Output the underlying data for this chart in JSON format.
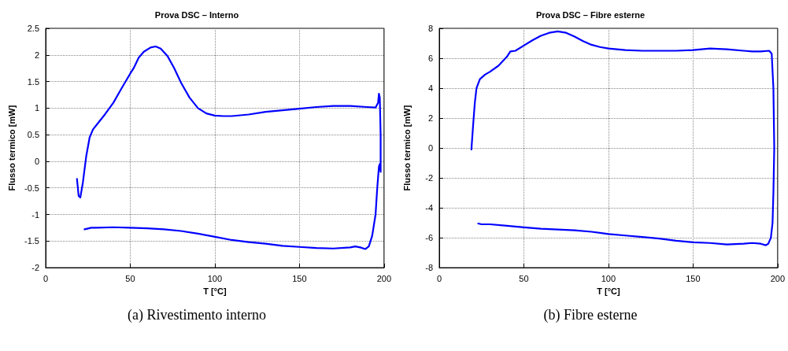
{
  "chart_data": [
    {
      "type": "line",
      "title": "Prova DSC – Interno",
      "xlabel": "T [°C]",
      "ylabel": "Flusso termico [mW]",
      "annotations": [
        "(a) Rivestimento interno"
      ],
      "xlim": [
        0,
        200
      ],
      "xticks": [
        0,
        50,
        100,
        150,
        200
      ],
      "ylim": [
        -2,
        2.5
      ],
      "yticks": [
        -2,
        -1.5,
        -1,
        -0.5,
        0,
        0.5,
        1,
        1.5,
        2,
        2.5
      ],
      "grid": true,
      "marker": "none",
      "line_style": "solid",
      "series": [
        {
          "color": "#0000ff",
          "x": [
            18.5,
            19.5,
            20.5,
            22,
            24,
            26,
            28,
            31,
            35,
            40,
            45,
            50,
            52,
            55,
            58,
            62,
            65,
            68,
            72,
            76,
            80,
            85,
            90,
            95,
            100,
            105,
            110,
            120,
            130,
            140,
            150,
            160,
            170,
            180,
            190,
            195,
            196.5,
            197,
            197.5,
            198,
            198,
            197.5,
            197,
            196,
            195,
            193,
            191,
            189,
            186,
            183,
            180,
            170,
            160,
            150,
            140,
            130,
            120,
            110,
            100,
            90,
            80,
            70,
            60,
            50,
            40,
            30,
            27,
            23
          ],
          "values": [
            -0.33,
            -0.65,
            -0.68,
            -0.4,
            0.1,
            0.45,
            0.6,
            0.72,
            0.88,
            1.1,
            1.38,
            1.65,
            1.75,
            1.95,
            2.06,
            2.14,
            2.16,
            2.12,
            1.98,
            1.75,
            1.48,
            1.2,
            1.0,
            0.9,
            0.86,
            0.85,
            0.85,
            0.88,
            0.93,
            0.96,
            0.99,
            1.02,
            1.04,
            1.04,
            1.02,
            1.01,
            1.1,
            1.27,
            1.2,
            0.5,
            -0.2,
            -0.05,
            -0.1,
            -0.5,
            -1.0,
            -1.4,
            -1.6,
            -1.65,
            -1.62,
            -1.6,
            -1.62,
            -1.64,
            -1.63,
            -1.61,
            -1.59,
            -1.55,
            -1.52,
            -1.48,
            -1.42,
            -1.36,
            -1.31,
            -1.28,
            -1.26,
            -1.25,
            -1.24,
            -1.25,
            -1.25,
            -1.28
          ]
        }
      ]
    },
    {
      "type": "line",
      "title": "Prova DSC – Fibre esterne",
      "xlabel": "T [°C]",
      "ylabel": "Flusso termico [mW]",
      "annotations": [
        "(b) Fibre esterne"
      ],
      "xlim": [
        0,
        200
      ],
      "xticks": [
        0,
        50,
        100,
        150,
        200
      ],
      "ylim": [
        -8,
        8
      ],
      "yticks": [
        -8,
        -6,
        -4,
        -2,
        0,
        2,
        4,
        6,
        8
      ],
      "grid": true,
      "marker": "none",
      "line_style": "solid",
      "series": [
        {
          "color": "#0000ff",
          "x": [
            19,
            20,
            21,
            22,
            24,
            27,
            30,
            35,
            40,
            42,
            45,
            50,
            55,
            60,
            65,
            70,
            75,
            80,
            85,
            90,
            95,
            100,
            110,
            120,
            130,
            140,
            150,
            160,
            170,
            180,
            185,
            190,
            195,
            196.5,
            197.5,
            198,
            197.5,
            197,
            196,
            194.5,
            193,
            190,
            185,
            180,
            170,
            160,
            150,
            140,
            130,
            120,
            110,
            100,
            90,
            80,
            70,
            60,
            50,
            40,
            30,
            25,
            23
          ],
          "values": [
            -0.1,
            1.5,
            3,
            4,
            4.6,
            4.9,
            5.1,
            5.5,
            6.1,
            6.45,
            6.5,
            6.85,
            7.2,
            7.5,
            7.7,
            7.8,
            7.7,
            7.45,
            7.15,
            6.9,
            6.75,
            6.65,
            6.55,
            6.5,
            6.5,
            6.5,
            6.55,
            6.65,
            6.6,
            6.5,
            6.45,
            6.45,
            6.5,
            6.3,
            4,
            0,
            -3,
            -5,
            -6,
            -6.4,
            -6.5,
            -6.4,
            -6.35,
            -6.4,
            -6.45,
            -6.35,
            -6.3,
            -6.2,
            -6.05,
            -5.95,
            -5.85,
            -5.75,
            -5.6,
            -5.5,
            -5.45,
            -5.4,
            -5.3,
            -5.2,
            -5.1,
            -5.1,
            -5.05
          ]
        }
      ]
    }
  ]
}
